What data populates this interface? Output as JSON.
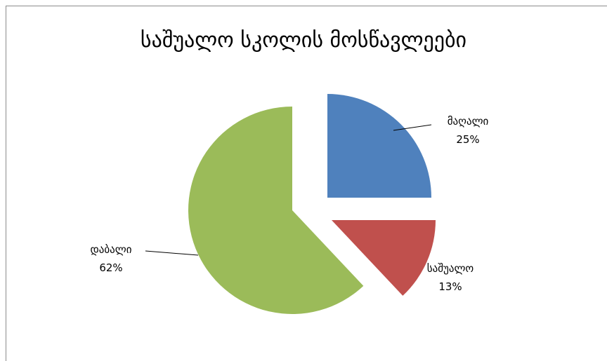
{
  "chart_data": {
    "type": "pie",
    "title": "საშუალო სკოლის მოსწავლეები",
    "series": [
      {
        "category": "მაღალი",
        "value": 25,
        "label": "25%",
        "color": "#4f81bd"
      },
      {
        "category": "საშუალო",
        "value": 13,
        "label": "13%",
        "color": "#c0504d"
      },
      {
        "category": "დაბალი",
        "value": 62,
        "label": "62%",
        "color": "#9bbb59"
      }
    ],
    "exploded": true,
    "legend": "none"
  }
}
